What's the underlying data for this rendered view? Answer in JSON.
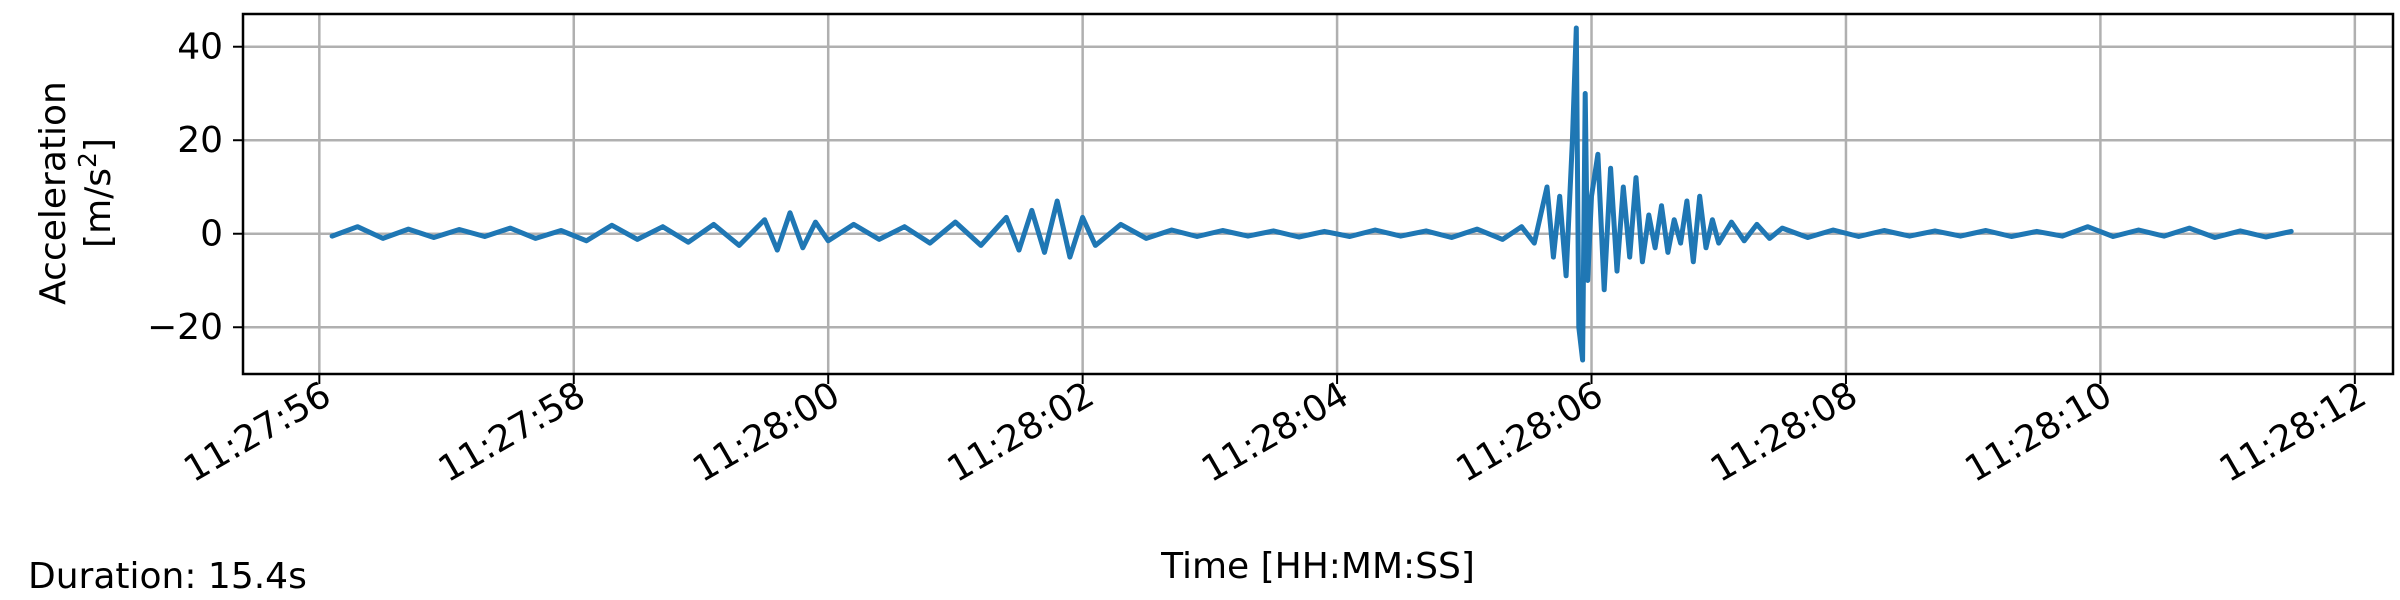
{
  "annotation": "Duration: 15.4s",
  "chart_data": {
    "type": "line",
    "xlabel": "Time [HH:MM:SS]",
    "ylabel_line1": "Acceleration",
    "ylabel_line2_prefix": "[m/s",
    "ylabel_line2_sup": "2",
    "ylabel_line2_suffix": "]",
    "xlim": [
      "11:27:55.4",
      "11:28:12.3"
    ],
    "ylim": [
      -30,
      47
    ],
    "x_ticks": [
      "11:27:56",
      "11:27:58",
      "11:28:00",
      "11:28:02",
      "11:28:04",
      "11:28:06",
      "11:28:08",
      "11:28:10",
      "11:28:12"
    ],
    "y_ticks": [
      40,
      20,
      0,
      -20
    ],
    "y_tick_labels": [
      "40",
      "20",
      "0",
      "−20"
    ],
    "grid": true,
    "series_color": "#1f77b4",
    "series": [
      {
        "x": [
          "11:27:56.1",
          "11:27:56.3",
          "11:27:56.5",
          "11:27:56.7",
          "11:27:56.9",
          "11:27:57.1",
          "11:27:57.3",
          "11:27:57.5",
          "11:27:57.7",
          "11:27:57.9",
          "11:27:58.1",
          "11:27:58.3",
          "11:27:58.5",
          "11:27:58.7",
          "11:27:58.9",
          "11:27:59.1",
          "11:27:59.3",
          "11:27:59.5",
          "11:27:59.6",
          "11:27:59.7",
          "11:27:59.8",
          "11:27:59.9",
          "11:28:00.0",
          "11:28:00.2",
          "11:28:00.4",
          "11:28:00.6",
          "11:28:00.8",
          "11:28:01.0",
          "11:28:01.2",
          "11:28:01.4",
          "11:28:01.5",
          "11:28:01.6",
          "11:28:01.7",
          "11:28:01.8",
          "11:28:01.9",
          "11:28:02.0",
          "11:28:02.1",
          "11:28:02.3",
          "11:28:02.5",
          "11:28:02.7",
          "11:28:02.9",
          "11:28:03.1",
          "11:28:03.3",
          "11:28:03.5",
          "11:28:03.7",
          "11:28:03.9",
          "11:28:04.1",
          "11:28:04.3",
          "11:28:04.5",
          "11:28:04.7",
          "11:28:04.9",
          "11:28:05.1",
          "11:28:05.3",
          "11:28:05.45",
          "11:28:05.55",
          "11:28:05.65",
          "11:28:05.7",
          "11:28:05.75",
          "11:28:05.8",
          "11:28:05.85",
          "11:28:05.88",
          "11:28:05.9",
          "11:28:05.93",
          "11:28:05.95",
          "11:28:05.97",
          "11:28:06.0",
          "11:28:06.05",
          "11:28:06.1",
          "11:28:06.15",
          "11:28:06.2",
          "11:28:06.25",
          "11:28:06.3",
          "11:28:06.35",
          "11:28:06.4",
          "11:28:06.45",
          "11:28:06.5",
          "11:28:06.55",
          "11:28:06.6",
          "11:28:06.65",
          "11:28:06.7",
          "11:28:06.75",
          "11:28:06.8",
          "11:28:06.85",
          "11:28:06.9",
          "11:28:06.95",
          "11:28:07.0",
          "11:28:07.1",
          "11:28:07.2",
          "11:28:07.3",
          "11:28:07.4",
          "11:28:07.5",
          "11:28:07.7",
          "11:28:07.9",
          "11:28:08.1",
          "11:28:08.3",
          "11:28:08.5",
          "11:28:08.7",
          "11:28:08.9",
          "11:28:09.1",
          "11:28:09.3",
          "11:28:09.5",
          "11:28:09.7",
          "11:28:09.9",
          "11:28:10.1",
          "11:28:10.3",
          "11:28:10.5",
          "11:28:10.7",
          "11:28:10.9",
          "11:28:11.1",
          "11:28:11.3",
          "11:28:11.5"
        ],
        "y": [
          -0.5,
          1.5,
          -1,
          1,
          -0.8,
          0.9,
          -0.6,
          1.2,
          -1,
          0.7,
          -1.5,
          1.8,
          -1.2,
          1.5,
          -1.8,
          2,
          -2.5,
          3,
          -3.5,
          4.5,
          -3,
          2.5,
          -1.5,
          2,
          -1.2,
          1.5,
          -2,
          2.5,
          -2.5,
          3.5,
          -3.5,
          5,
          -4,
          7,
          -5,
          3.5,
          -2.5,
          2,
          -1,
          0.8,
          -0.6,
          0.7,
          -0.5,
          0.6,
          -0.7,
          0.5,
          -0.6,
          0.8,
          -0.5,
          0.6,
          -0.8,
          1,
          -1.2,
          1.5,
          -2,
          10,
          -5,
          8,
          -9,
          20,
          44,
          -20,
          -27,
          30,
          -10,
          8,
          17,
          -12,
          14,
          -8,
          10,
          -5,
          12,
          -6,
          4,
          -3,
          6,
          -4,
          3,
          -2,
          7,
          -6,
          8,
          -3,
          3,
          -2,
          2.5,
          -1.5,
          2,
          -1,
          1.2,
          -0.8,
          0.8,
          -0.6,
          0.7,
          -0.5,
          0.6,
          -0.5,
          0.7,
          -0.6,
          0.5,
          -0.5,
          1.5,
          -0.6,
          0.8,
          -0.5,
          1.2,
          -0.8,
          0.6,
          -0.7,
          0.5
        ]
      }
    ]
  }
}
